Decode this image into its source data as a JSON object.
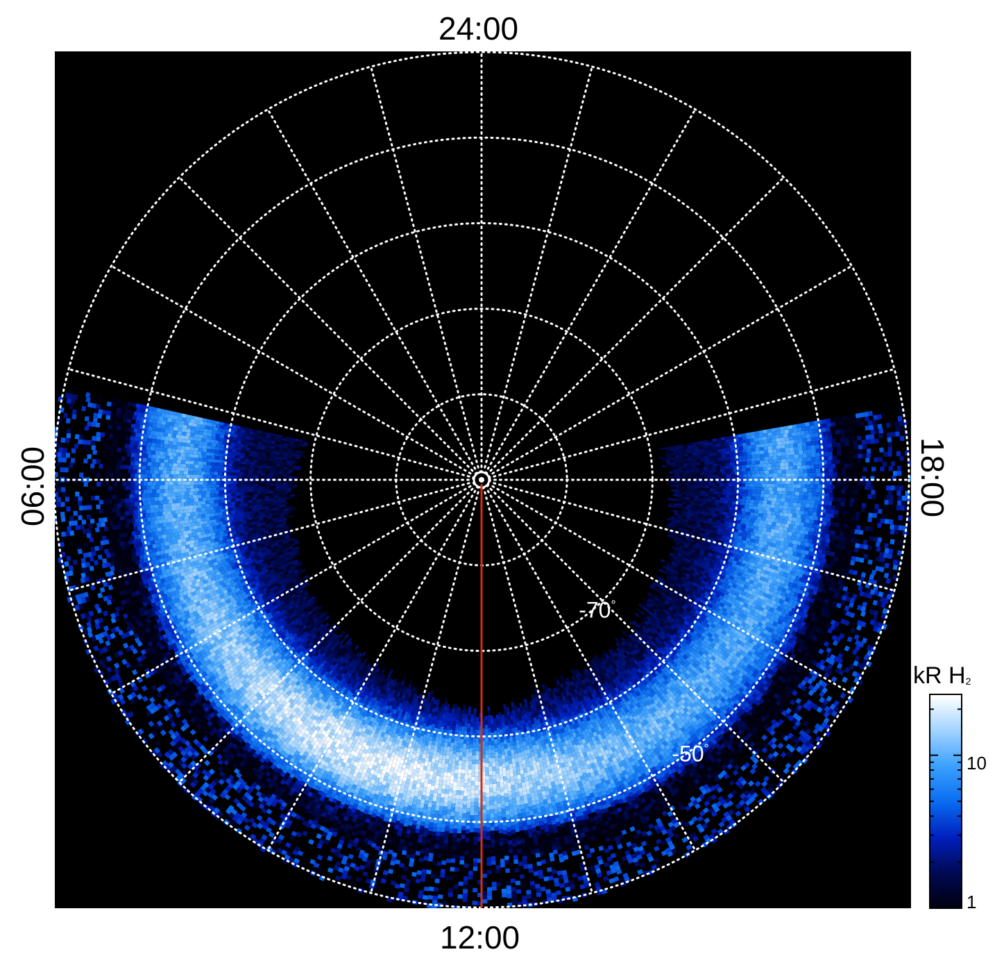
{
  "chart_data": {
    "type": "heatmap",
    "projection": "polar",
    "hemisphere": "south",
    "local_time_labels": {
      "top": "24:00",
      "bottom": "12:00",
      "left": "06:00",
      "right": "18:00"
    },
    "latitude_circles_deg": [
      -50,
      -60,
      -70,
      -80,
      -89
    ],
    "latitude_labels": [
      {
        "text": "-70",
        "lat": -70
      },
      {
        "text": "-50",
        "lat": -50
      }
    ],
    "degree_symbol": "°",
    "meridian_step_hours": 1,
    "outer_latitude_deg": -40,
    "meridian_marker": {
      "local_time": "12:00",
      "color": "#d03010"
    },
    "colorbar": {
      "label": "kR H",
      "label_subscript": "2",
      "scale": "log",
      "range": [
        1,
        25
      ],
      "tick_labels": [
        "10",
        "1"
      ],
      "colors": [
        "#000010",
        "#000a55",
        "#0020c0",
        "#0a6cf0",
        "#3aa0ff",
        "#9fd2ff",
        "#ffffff"
      ]
    },
    "emission": {
      "coverage_lt": [
        "05:10",
        "18:40"
      ],
      "coverage_lat": [
        -40,
        -64
      ],
      "peak_lt": "12:00",
      "peak_lat": -55,
      "peak_kR": 22,
      "dayside_oval_kR": 10
    },
    "background": "#000000",
    "grid": true,
    "grid_style": "dotted-white"
  }
}
